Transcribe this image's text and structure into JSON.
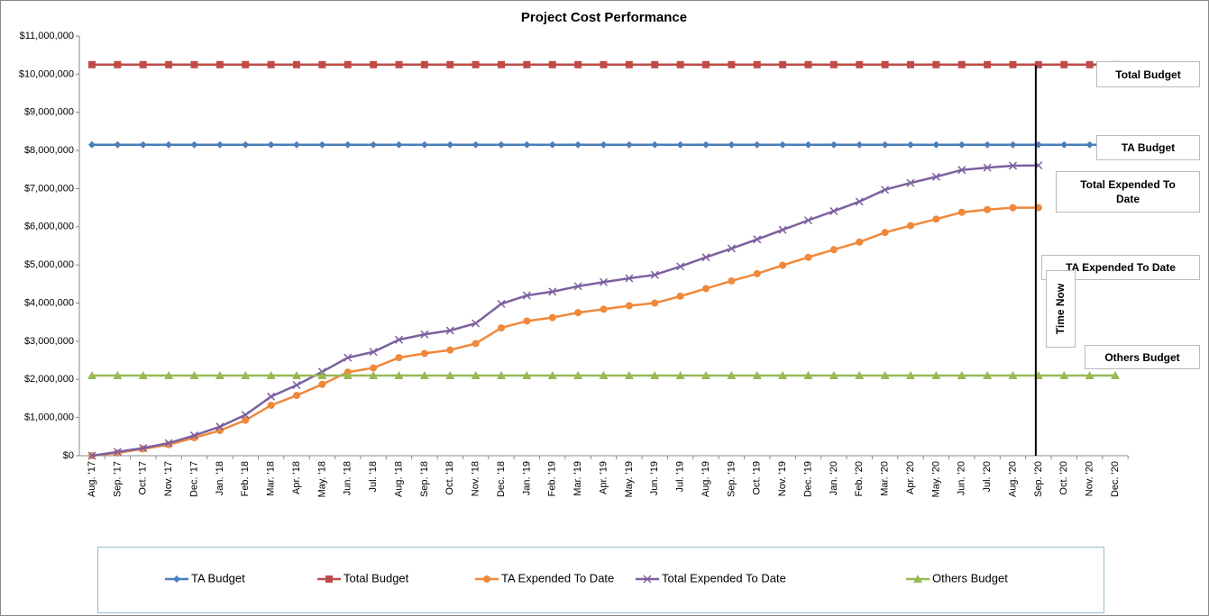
{
  "chart_data": {
    "type": "line",
    "title": "Project Cost Performance",
    "categories": [
      "Aug. '17",
      "Sep. '17",
      "Oct. '17",
      "Nov. '17",
      "Dec. '17",
      "Jan. '18",
      "Feb. '18",
      "Mar. '18",
      "Apr. '18",
      "May. '18",
      "Jun. '18",
      "Jul. '18",
      "Aug. '18",
      "Sep. '18",
      "Oct. '18",
      "Nov. '18",
      "Dec. '18",
      "Jan. '19",
      "Feb. '19",
      "Mar. '19",
      "Apr. '19",
      "May. '19",
      "Jun. '19",
      "Jul. '19",
      "Aug. '19",
      "Sep. '19",
      "Oct. '19",
      "Nov. '19",
      "Dec. '19",
      "Jan. '20",
      "Feb. '20",
      "Mar. '20",
      "Apr. '20",
      "May. '20",
      "Jun. '20",
      "Jul. '20",
      "Aug. '20",
      "Sep. '20",
      "Oct. '20",
      "Nov. '20",
      "Dec. '20"
    ],
    "series": [
      {
        "name": "TA Budget",
        "color": "#4a7ebb",
        "marker": "diamond",
        "values": [
          8150000,
          8150000,
          8150000,
          8150000,
          8150000,
          8150000,
          8150000,
          8150000,
          8150000,
          8150000,
          8150000,
          8150000,
          8150000,
          8150000,
          8150000,
          8150000,
          8150000,
          8150000,
          8150000,
          8150000,
          8150000,
          8150000,
          8150000,
          8150000,
          8150000,
          8150000,
          8150000,
          8150000,
          8150000,
          8150000,
          8150000,
          8150000,
          8150000,
          8150000,
          8150000,
          8150000,
          8150000,
          8150000,
          8150000,
          8150000,
          8150000
        ]
      },
      {
        "name": "Total Budget",
        "color": "#be4b48",
        "marker": "square",
        "values": [
          10250000,
          10250000,
          10250000,
          10250000,
          10250000,
          10250000,
          10250000,
          10250000,
          10250000,
          10250000,
          10250000,
          10250000,
          10250000,
          10250000,
          10250000,
          10250000,
          10250000,
          10250000,
          10250000,
          10250000,
          10250000,
          10250000,
          10250000,
          10250000,
          10250000,
          10250000,
          10250000,
          10250000,
          10250000,
          10250000,
          10250000,
          10250000,
          10250000,
          10250000,
          10250000,
          10250000,
          10250000,
          10250000,
          10250000,
          10250000,
          10250000
        ]
      },
      {
        "name": "TA Expended To Date",
        "color": "#f0883a",
        "marker": "circle",
        "values": [
          0,
          70000,
          180000,
          290000,
          470000,
          660000,
          930000,
          1320000,
          1580000,
          1870000,
          2190000,
          2300000,
          2570000,
          2680000,
          2770000,
          2940000,
          3350000,
          3530000,
          3620000,
          3750000,
          3840000,
          3930000,
          4000000,
          4180000,
          4380000,
          4580000,
          4770000,
          4990000,
          5200000,
          5400000,
          5600000,
          5850000,
          6030000,
          6200000,
          6380000,
          6450000,
          6500000,
          6500000,
          null,
          null,
          null
        ]
      },
      {
        "name": "Total Expended To Date",
        "color": "#7d60a0",
        "marker": "x",
        "values": [
          0,
          100000,
          200000,
          330000,
          530000,
          760000,
          1070000,
          1550000,
          1850000,
          2200000,
          2570000,
          2720000,
          3040000,
          3180000,
          3280000,
          3470000,
          3980000,
          4200000,
          4300000,
          4440000,
          4550000,
          4650000,
          4740000,
          4960000,
          5200000,
          5430000,
          5670000,
          5920000,
          6170000,
          6410000,
          6660000,
          6970000,
          7150000,
          7310000,
          7490000,
          7550000,
          7600000,
          7610000,
          null,
          null,
          null
        ]
      },
      {
        "name": "Others Budget",
        "color": "#98b954",
        "marker": "triangle",
        "values": [
          2100000,
          2100000,
          2100000,
          2100000,
          2100000,
          2100000,
          2100000,
          2100000,
          2100000,
          2100000,
          2100000,
          2100000,
          2100000,
          2100000,
          2100000,
          2100000,
          2100000,
          2100000,
          2100000,
          2100000,
          2100000,
          2100000,
          2100000,
          2100000,
          2100000,
          2100000,
          2100000,
          2100000,
          2100000,
          2100000,
          2100000,
          2100000,
          2100000,
          2100000,
          2100000,
          2100000,
          2100000,
          2100000,
          2100000,
          2100000,
          2100000
        ]
      }
    ],
    "ylim": [
      0,
      11000000
    ],
    "yticks": [
      {
        "value": 0,
        "label": "$0"
      },
      {
        "value": 1000000,
        "label": "$1,000,000"
      },
      {
        "value": 2000000,
        "label": "$2,000,000"
      },
      {
        "value": 3000000,
        "label": "$3,000,000"
      },
      {
        "value": 4000000,
        "label": "$4,000,000"
      },
      {
        "value": 5000000,
        "label": "$5,000,000"
      },
      {
        "value": 6000000,
        "label": "$6,000,000"
      },
      {
        "value": 7000000,
        "label": "$7,000,000"
      },
      {
        "value": 8000000,
        "label": "$8,000,000"
      },
      {
        "value": 9000000,
        "label": "$9,000,000"
      },
      {
        "value": 10000000,
        "label": "$10,000,000"
      },
      {
        "value": 11000000,
        "label": "$11,000,000"
      }
    ],
    "grid": false,
    "legend": "bottom",
    "annotations": [
      {
        "text": "Total Budget"
      },
      {
        "text": "TA Budget"
      },
      {
        "text": "Total Expended  To Date"
      },
      {
        "text": "TA Expended To Date"
      },
      {
        "text": "Others Budget"
      },
      {
        "text": "Time Now",
        "x": "Sep. '20"
      }
    ]
  }
}
